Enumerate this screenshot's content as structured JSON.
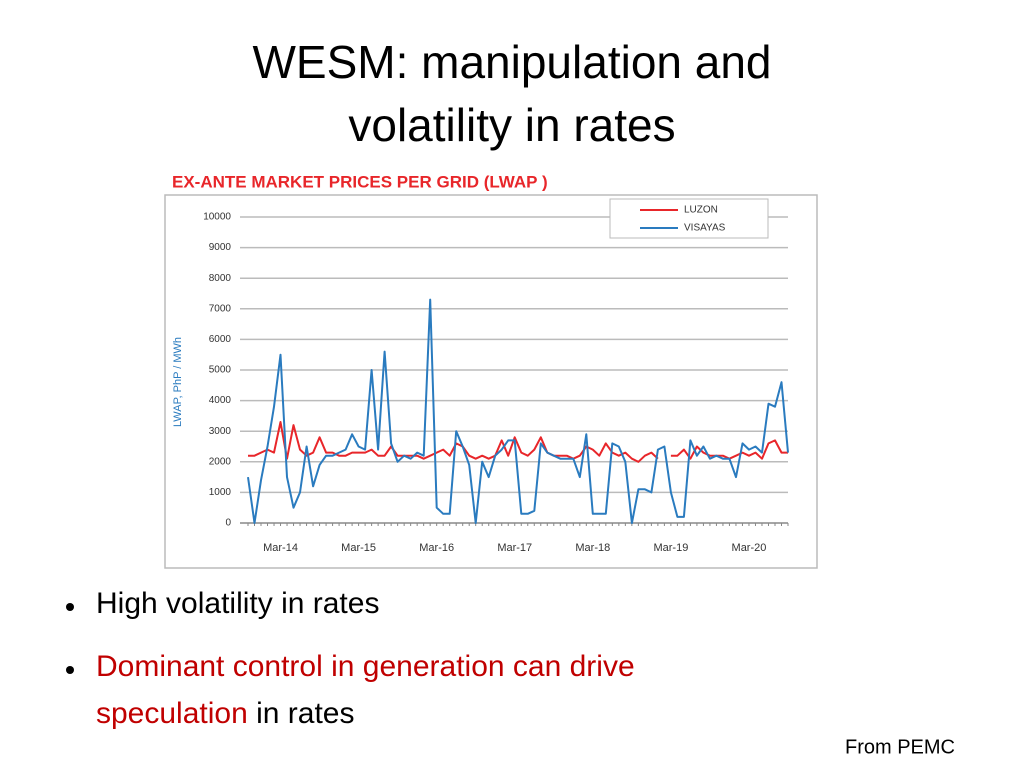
{
  "title": [
    "WESM: manipulation and",
    "volatility in rates"
  ],
  "bullets": [
    [
      {
        "text": "High volatility in rates",
        "color": "#000000"
      }
    ],
    [
      {
        "text": "Dominant control in generation can drive speculation",
        "color": "#c00000"
      },
      {
        "text": " in rates",
        "color": "#000000"
      }
    ]
  ],
  "source": "From PEMC",
  "chart_data": {
    "type": "line",
    "title": "EX-ANTE  MARKET PRICES PER GRID (LWAP )",
    "ylabel": "LWAP, PhP / MWh",
    "categories": [
      null,
      null,
      null,
      null,
      null,
      "Mar-14",
      null,
      null,
      null,
      null,
      null,
      null,
      null,
      null,
      null,
      null,
      null,
      "Mar-15",
      null,
      null,
      null,
      null,
      null,
      null,
      null,
      null,
      null,
      null,
      null,
      "Mar-16",
      null,
      null,
      null,
      null,
      null,
      null,
      null,
      null,
      null,
      null,
      null,
      "Mar-17",
      null,
      null,
      null,
      null,
      null,
      null,
      null,
      null,
      null,
      null,
      null,
      "Mar-18",
      null,
      null,
      null,
      null,
      null,
      null,
      null,
      null,
      null,
      null,
      null,
      "Mar-19",
      null,
      null,
      null,
      null,
      null,
      null,
      null,
      null,
      null,
      null,
      null,
      "Mar-20",
      null,
      null,
      null,
      null,
      null,
      null
    ],
    "series": [
      {
        "name": "LUZON",
        "color": "#e8262a",
        "values": [
          2200,
          2200,
          2300,
          2400,
          2300,
          3300,
          2100,
          3200,
          2400,
          2200,
          2300,
          2800,
          2300,
          2300,
          2200,
          2200,
          2300,
          2300,
          2300,
          2400,
          2200,
          2200,
          2500,
          2200,
          2200,
          2200,
          2200,
          2100,
          2200,
          2300,
          2400,
          2200,
          2600,
          2500,
          2200,
          2100,
          2200,
          2100,
          2200,
          2700,
          2200,
          2800,
          2300,
          2200,
          2400,
          2800,
          2300,
          2200,
          2200,
          2200,
          2100,
          2200,
          2500,
          2400,
          2200,
          2600,
          2300,
          2200,
          2300,
          2100,
          2000,
          2200,
          2300,
          2100,
          null,
          2200,
          2200,
          2400,
          2100,
          2500,
          2300,
          2200,
          2200,
          2200,
          2100,
          2200,
          2300,
          2200,
          2300,
          2100,
          2600,
          2700,
          2300,
          2300
        ]
      },
      {
        "name": "VISAYAS",
        "color": "#2a7bbf",
        "values": [
          1500,
          0,
          1400,
          2500,
          3800,
          5500,
          1500,
          500,
          1000,
          2500,
          1200,
          1900,
          2200,
          2200,
          2300,
          2400,
          2900,
          2500,
          2400,
          5000,
          2400,
          5600,
          2600,
          2000,
          2200,
          2100,
          2300,
          2200,
          7300,
          500,
          300,
          300,
          3000,
          2500,
          1900,
          0,
          2000,
          1500,
          2200,
          2400,
          2700,
          2700,
          300,
          300,
          400,
          2600,
          2300,
          2200,
          2100,
          2100,
          2100,
          1500,
          2900,
          300,
          300,
          300,
          2600,
          2500,
          2000,
          0,
          1100,
          1100,
          1000,
          2400,
          2500,
          1000,
          200,
          200,
          2700,
          2200,
          2500,
          2100,
          2200,
          2100,
          2100,
          1500,
          2600,
          2400,
          2500,
          2300,
          3900,
          3800,
          4600,
          2300
        ]
      }
    ],
    "ylim": [
      0,
      10000
    ],
    "yticks": [
      0,
      1000,
      2000,
      3000,
      4000,
      5000,
      6000,
      7000,
      8000,
      9000,
      10000
    ],
    "grid": true,
    "legend": "top-right"
  }
}
